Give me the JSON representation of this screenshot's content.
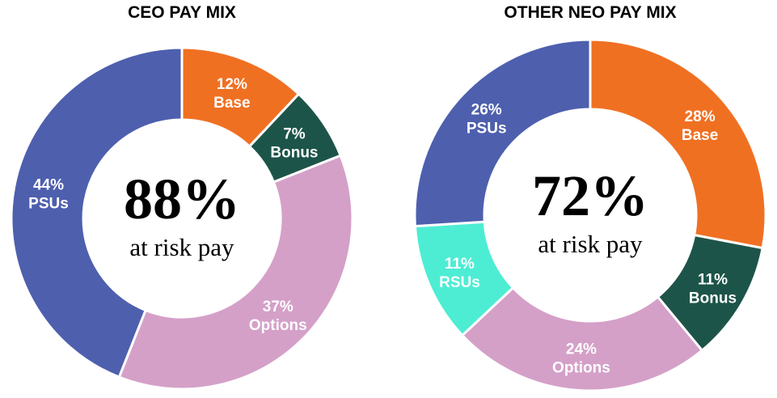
{
  "chart_data": [
    {
      "type": "pie",
      "style": "donut",
      "title": "CEO PAY MIX",
      "center_value": "88%",
      "center_label": "at risk pay",
      "slices": [
        {
          "name": "Base",
          "value": 12,
          "label": "12%",
          "color": "#F07022"
        },
        {
          "name": "Bonus",
          "value": 7,
          "label": "7%",
          "color": "#1D5449"
        },
        {
          "name": "Options",
          "value": 37,
          "label": "37%",
          "color": "#D4A0C8"
        },
        {
          "name": "PSUs",
          "value": 44,
          "label": "44%",
          "color": "#4E5FAE"
        }
      ]
    },
    {
      "type": "pie",
      "style": "donut",
      "title": "OTHER NEO PAY MIX",
      "center_value": "72%",
      "center_label": "at risk pay",
      "slices": [
        {
          "name": "Base",
          "value": 28,
          "label": "28%",
          "color": "#F07022"
        },
        {
          "name": "Bonus",
          "value": 11,
          "label": "11%",
          "color": "#1D5449"
        },
        {
          "name": "Options",
          "value": 24,
          "label": "24%",
          "color": "#D4A0C8"
        },
        {
          "name": "RSUs",
          "value": 11,
          "label": "11%",
          "color": "#4DEDD4"
        },
        {
          "name": "PSUs",
          "value": 26,
          "label": "26%",
          "color": "#4E5FAE"
        }
      ]
    }
  ]
}
